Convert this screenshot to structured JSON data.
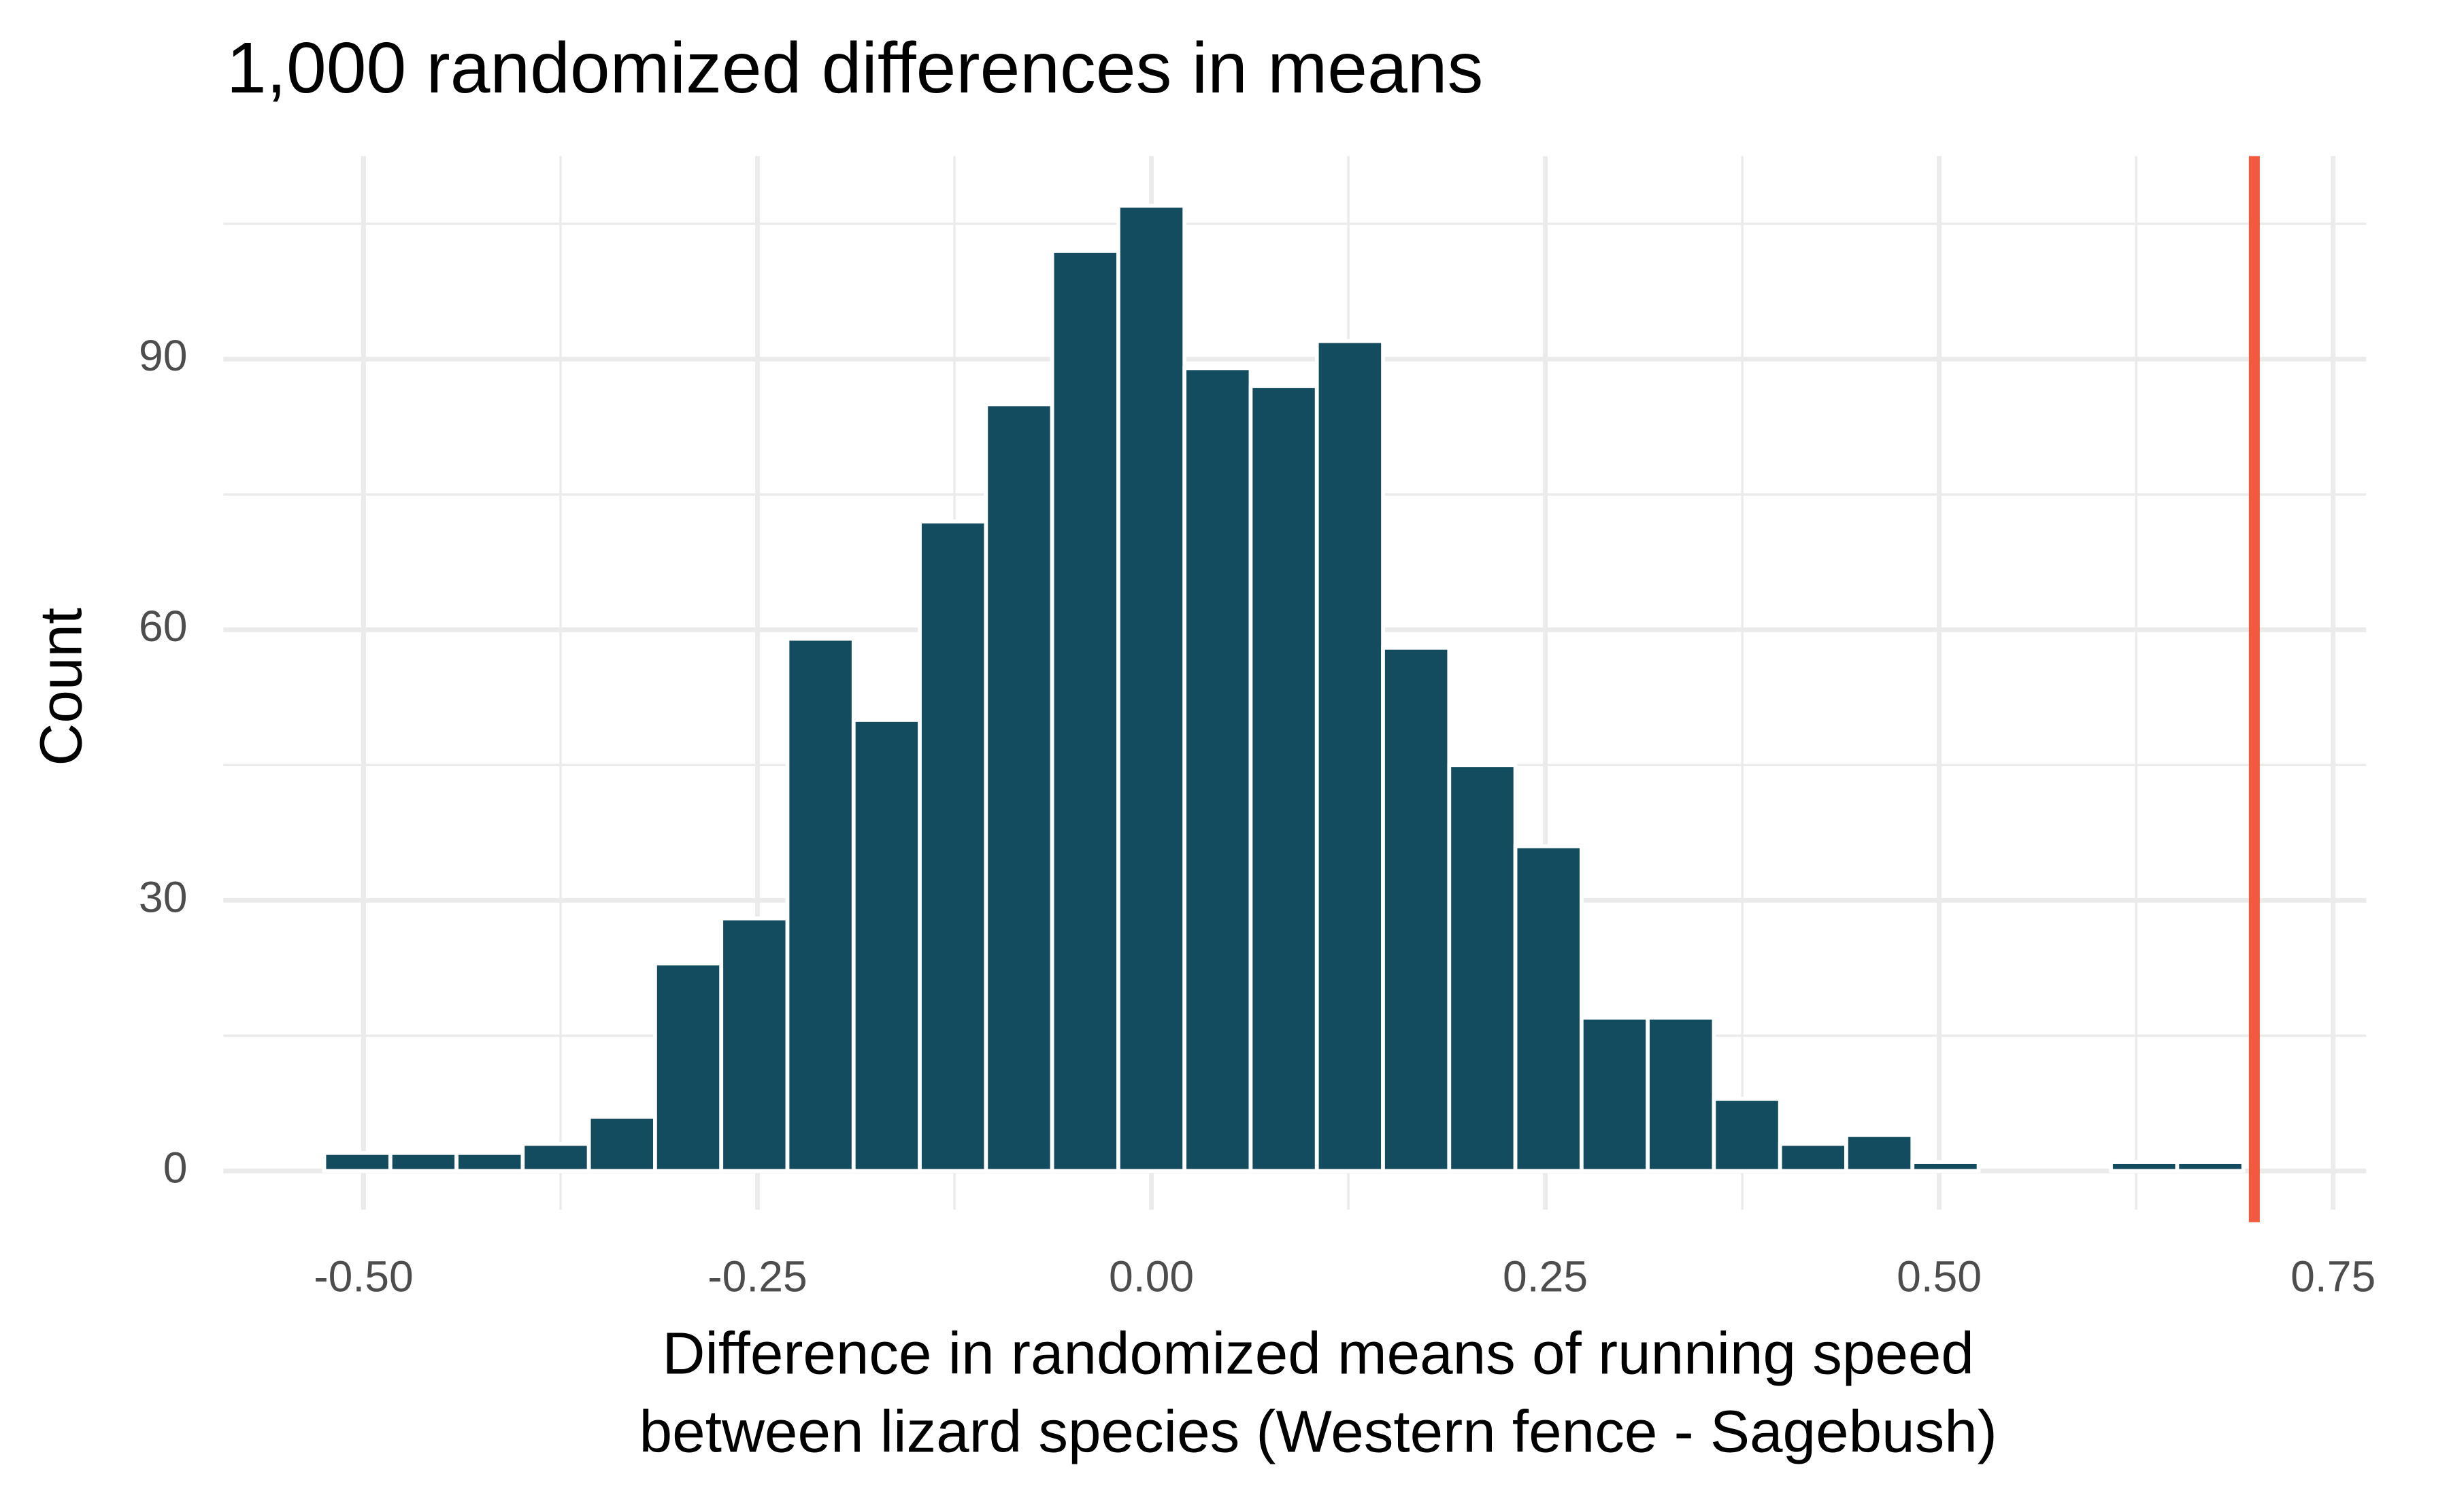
{
  "chart_data": {
    "type": "histogram",
    "title": "1,000 randomized differences in means",
    "x_label": "Difference in randomized means of running speed\nbetween lizard species (Western fence - Sagebush)",
    "y_label": "Count",
    "bins": [
      -0.525,
      -0.483,
      -0.441,
      -0.399,
      -0.357,
      -0.315,
      -0.273,
      -0.231,
      -0.189,
      -0.147,
      -0.105,
      -0.063,
      -0.021,
      0.021,
      0.063,
      0.105,
      0.147,
      0.189,
      0.231,
      0.273,
      0.315,
      0.357,
      0.399,
      0.441,
      0.483,
      0.525,
      0.567,
      0.609,
      0.651,
      0.693,
      0.735
    ],
    "values": [
      2,
      2,
      2,
      3,
      6,
      23,
      28,
      59,
      50,
      72,
      85,
      102,
      107,
      89,
      87,
      92,
      58,
      45,
      36,
      17,
      17,
      8,
      3,
      4,
      1,
      0,
      0,
      1,
      1,
      0
    ],
    "color": "#134b5f",
    "reference_line": 0.7,
    "reference_color": "#f15a3f",
    "xlim": [
      -0.589,
      0.771
    ],
    "ylim": [
      -4.3,
      112.5
    ],
    "xticks": [
      {
        "value": -0.5,
        "label": "-0.50"
      },
      {
        "value": -0.25,
        "label": "-0.25"
      },
      {
        "value": 0,
        "label": "0.00"
      },
      {
        "value": 0.25,
        "label": "0.25"
      },
      {
        "value": 0.5,
        "label": "0.50"
      },
      {
        "value": 0.75,
        "label": "0.75"
      }
    ],
    "yticks": [
      0,
      30,
      60,
      90
    ],
    "grid": true
  }
}
